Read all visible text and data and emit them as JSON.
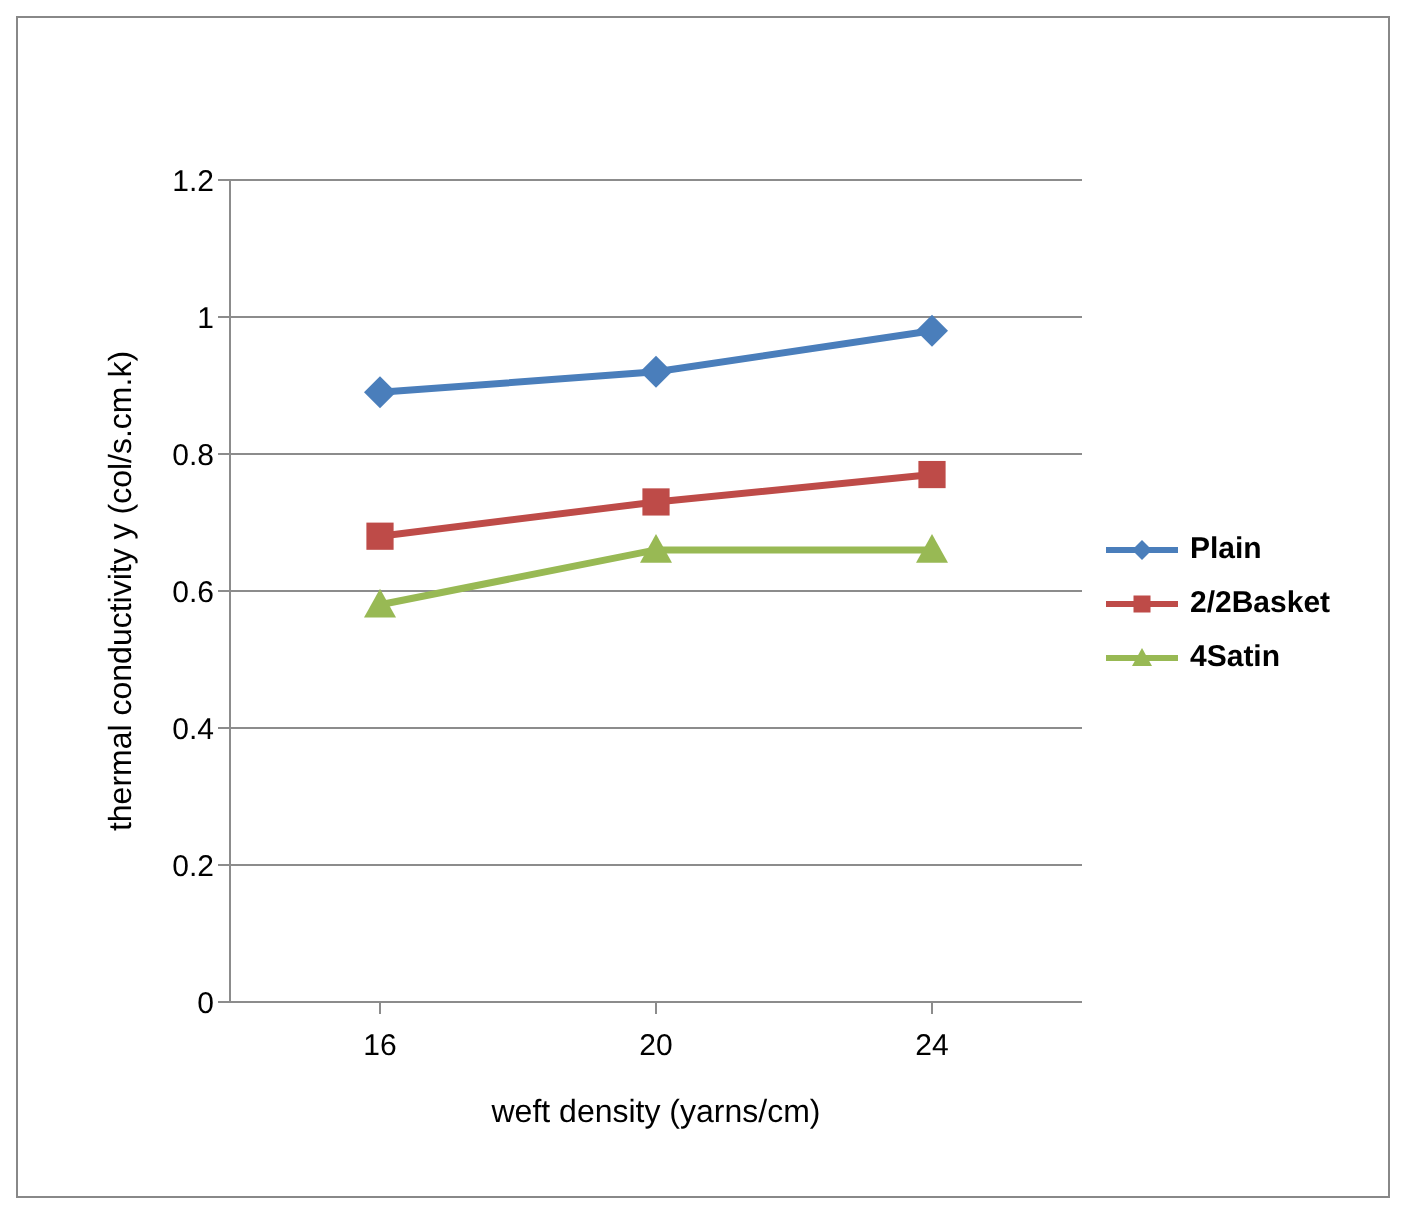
{
  "chart_data": {
    "type": "line",
    "xlabel": "weft density (yarns/cm)",
    "ylabel": "thermal conductivity y (col/s.cm.k)",
    "categories": [
      "16",
      "20",
      "24"
    ],
    "series": [
      {
        "name": "Plain",
        "color": "#4a7ebb",
        "marker": "diamond",
        "values": [
          0.89,
          0.92,
          0.98
        ]
      },
      {
        "name": "2/2Basket",
        "color": "#be4b48",
        "marker": "square",
        "values": [
          0.68,
          0.73,
          0.77
        ]
      },
      {
        "name": "4Satin",
        "color": "#98b954",
        "marker": "triangle",
        "values": [
          0.58,
          0.66,
          0.66
        ]
      }
    ],
    "ylim": [
      0,
      1.2
    ],
    "yticks": [
      0,
      0.2,
      0.4,
      0.6,
      0.8,
      1,
      1.2
    ],
    "grid": "y",
    "legend": "right",
    "line_style": "solid"
  }
}
